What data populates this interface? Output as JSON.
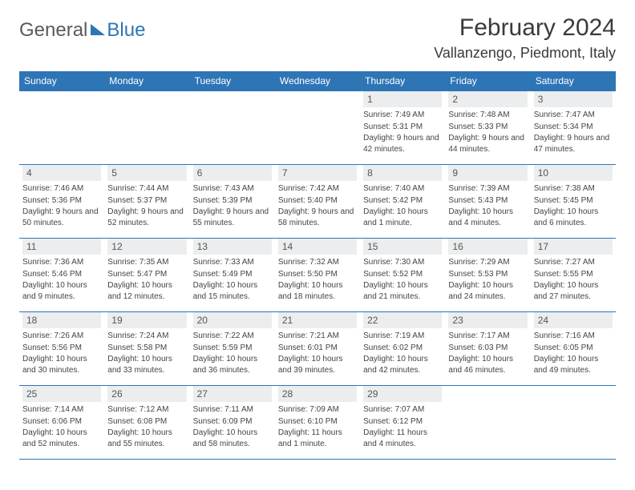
{
  "brand": {
    "part1": "General",
    "part2": "Blue"
  },
  "title": {
    "month": "February 2024",
    "location": "Vallanzengo, Piedmont, Italy"
  },
  "style": {
    "header_bg": "#2e75b6",
    "header_fg": "#ffffff",
    "border_color": "#2e75b6",
    "daynum_bg": "#ecedee",
    "text_color": "#444444",
    "font_family": "Arial",
    "header_fontsize": 12,
    "daynum_fontsize": 12,
    "body_fontsize": 10
  },
  "columns": [
    "Sunday",
    "Monday",
    "Tuesday",
    "Wednesday",
    "Thursday",
    "Friday",
    "Saturday"
  ],
  "weeks": [
    [
      null,
      null,
      null,
      null,
      {
        "d": "1",
        "sr": "7:49 AM",
        "ss": "5:31 PM",
        "dl": "9 hours and 42 minutes."
      },
      {
        "d": "2",
        "sr": "7:48 AM",
        "ss": "5:33 PM",
        "dl": "9 hours and 44 minutes."
      },
      {
        "d": "3",
        "sr": "7:47 AM",
        "ss": "5:34 PM",
        "dl": "9 hours and 47 minutes."
      }
    ],
    [
      {
        "d": "4",
        "sr": "7:46 AM",
        "ss": "5:36 PM",
        "dl": "9 hours and 50 minutes."
      },
      {
        "d": "5",
        "sr": "7:44 AM",
        "ss": "5:37 PM",
        "dl": "9 hours and 52 minutes."
      },
      {
        "d": "6",
        "sr": "7:43 AM",
        "ss": "5:39 PM",
        "dl": "9 hours and 55 minutes."
      },
      {
        "d": "7",
        "sr": "7:42 AM",
        "ss": "5:40 PM",
        "dl": "9 hours and 58 minutes."
      },
      {
        "d": "8",
        "sr": "7:40 AM",
        "ss": "5:42 PM",
        "dl": "10 hours and 1 minute."
      },
      {
        "d": "9",
        "sr": "7:39 AM",
        "ss": "5:43 PM",
        "dl": "10 hours and 4 minutes."
      },
      {
        "d": "10",
        "sr": "7:38 AM",
        "ss": "5:45 PM",
        "dl": "10 hours and 6 minutes."
      }
    ],
    [
      {
        "d": "11",
        "sr": "7:36 AM",
        "ss": "5:46 PM",
        "dl": "10 hours and 9 minutes."
      },
      {
        "d": "12",
        "sr": "7:35 AM",
        "ss": "5:47 PM",
        "dl": "10 hours and 12 minutes."
      },
      {
        "d": "13",
        "sr": "7:33 AM",
        "ss": "5:49 PM",
        "dl": "10 hours and 15 minutes."
      },
      {
        "d": "14",
        "sr": "7:32 AM",
        "ss": "5:50 PM",
        "dl": "10 hours and 18 minutes."
      },
      {
        "d": "15",
        "sr": "7:30 AM",
        "ss": "5:52 PM",
        "dl": "10 hours and 21 minutes."
      },
      {
        "d": "16",
        "sr": "7:29 AM",
        "ss": "5:53 PM",
        "dl": "10 hours and 24 minutes."
      },
      {
        "d": "17",
        "sr": "7:27 AM",
        "ss": "5:55 PM",
        "dl": "10 hours and 27 minutes."
      }
    ],
    [
      {
        "d": "18",
        "sr": "7:26 AM",
        "ss": "5:56 PM",
        "dl": "10 hours and 30 minutes."
      },
      {
        "d": "19",
        "sr": "7:24 AM",
        "ss": "5:58 PM",
        "dl": "10 hours and 33 minutes."
      },
      {
        "d": "20",
        "sr": "7:22 AM",
        "ss": "5:59 PM",
        "dl": "10 hours and 36 minutes."
      },
      {
        "d": "21",
        "sr": "7:21 AM",
        "ss": "6:01 PM",
        "dl": "10 hours and 39 minutes."
      },
      {
        "d": "22",
        "sr": "7:19 AM",
        "ss": "6:02 PM",
        "dl": "10 hours and 42 minutes."
      },
      {
        "d": "23",
        "sr": "7:17 AM",
        "ss": "6:03 PM",
        "dl": "10 hours and 46 minutes."
      },
      {
        "d": "24",
        "sr": "7:16 AM",
        "ss": "6:05 PM",
        "dl": "10 hours and 49 minutes."
      }
    ],
    [
      {
        "d": "25",
        "sr": "7:14 AM",
        "ss": "6:06 PM",
        "dl": "10 hours and 52 minutes."
      },
      {
        "d": "26",
        "sr": "7:12 AM",
        "ss": "6:08 PM",
        "dl": "10 hours and 55 minutes."
      },
      {
        "d": "27",
        "sr": "7:11 AM",
        "ss": "6:09 PM",
        "dl": "10 hours and 58 minutes."
      },
      {
        "d": "28",
        "sr": "7:09 AM",
        "ss": "6:10 PM",
        "dl": "11 hours and 1 minute."
      },
      {
        "d": "29",
        "sr": "7:07 AM",
        "ss": "6:12 PM",
        "dl": "11 hours and 4 minutes."
      },
      null,
      null
    ]
  ],
  "labels": {
    "sunrise": "Sunrise:",
    "sunset": "Sunset:",
    "daylight": "Daylight:"
  }
}
